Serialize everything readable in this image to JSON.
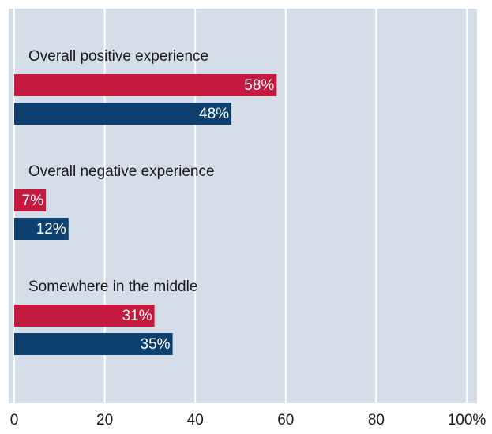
{
  "chart_data": {
    "type": "bar",
    "orientation": "horizontal",
    "categories": [
      "Overall positive experience",
      "Overall negative experience",
      "Somewhere in the middle"
    ],
    "series": [
      {
        "color": "#c41a40",
        "values": [
          58,
          7,
          31
        ],
        "value_labels": [
          "58%",
          "7%",
          "31%"
        ]
      },
      {
        "color": "#0d3f6f",
        "values": [
          48,
          12,
          35
        ],
        "value_labels": [
          "48%",
          "12%",
          "35%"
        ]
      }
    ],
    "xlim": [
      0,
      100
    ],
    "xticks": [
      0,
      20,
      40,
      60,
      80,
      {
        "value": 100,
        "label": "100%"
      }
    ],
    "grid": true,
    "background": "#d5dde9"
  }
}
